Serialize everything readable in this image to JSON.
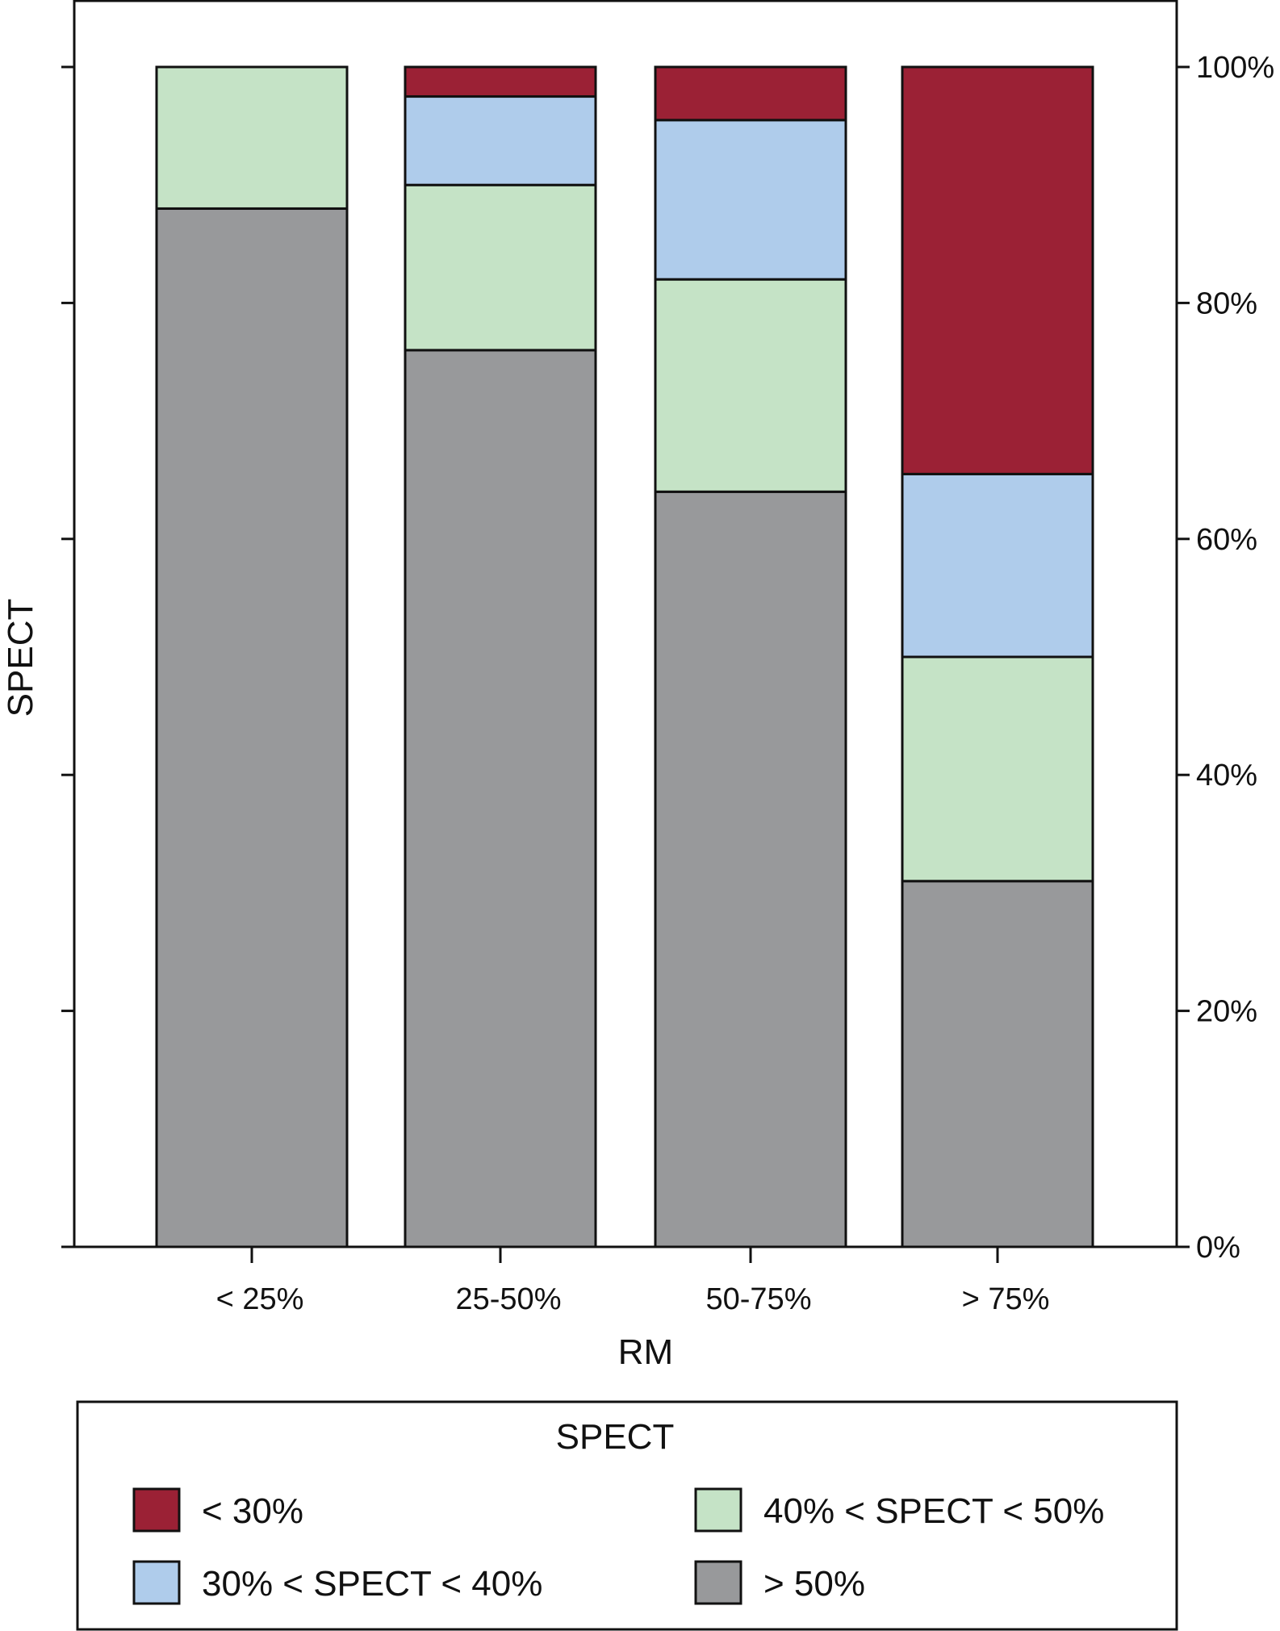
{
  "chart_data": {
    "type": "bar",
    "stacked": true,
    "categories": [
      "< 25%",
      "25-50%",
      "50-75%",
      "> 75%"
    ],
    "xlabel": "RM",
    "ylabel": "SPECT",
    "ylim": [
      0,
      100
    ],
    "y_axis_side": "right",
    "y_tick_labels": [
      "0%",
      "20%",
      "40%",
      "60%",
      "80%",
      "100%"
    ],
    "y_ticks": [
      0,
      20,
      40,
      60,
      80,
      100
    ],
    "grid": false,
    "legend_title": "SPECT",
    "legend_position": "bottom",
    "series": [
      {
        "name": "> 50%",
        "color": "#98999b",
        "values": [
          88,
          76,
          64,
          31
        ]
      },
      {
        "name": "40% < SPECT < 50%",
        "color": "#c5e3c6",
        "values": [
          12,
          14,
          18,
          19
        ]
      },
      {
        "name": "30% < SPECT < 40%",
        "color": "#afcceb",
        "values": [
          0,
          7.5,
          13.5,
          15.5
        ]
      },
      {
        "name": "< 30%",
        "color": "#9b2135",
        "values": [
          0,
          2.5,
          4.5,
          34.5
        ]
      }
    ],
    "legend_order": [
      "< 30%",
      "40% < SPECT < 50%",
      "30% < SPECT < 40%",
      "> 50%"
    ]
  }
}
